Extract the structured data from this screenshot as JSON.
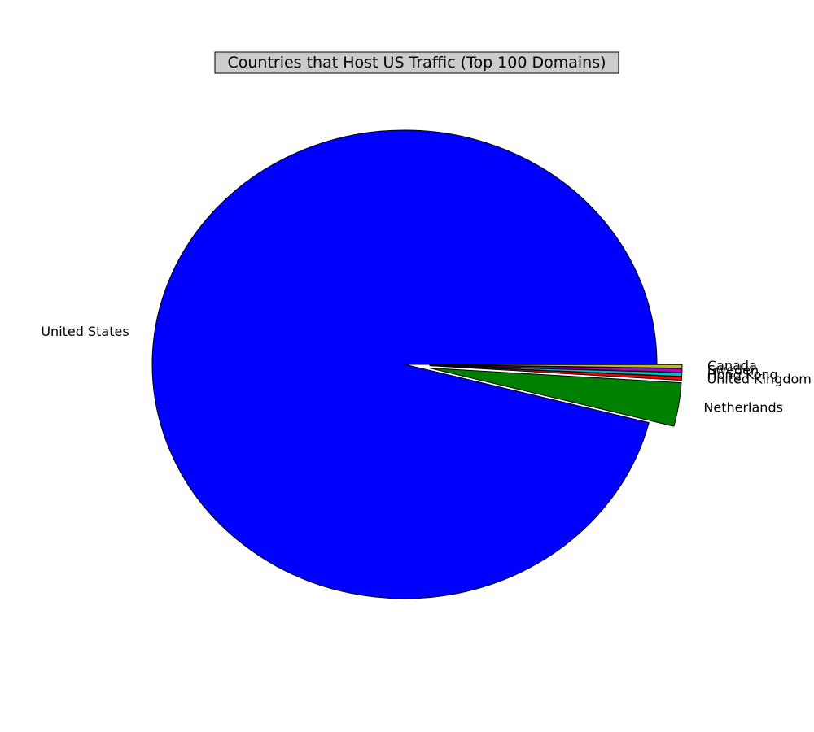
{
  "chart_data": {
    "type": "pie",
    "title": "Countries that Host US Traffic (Top 100 Domains)",
    "slices": [
      {
        "label": "United States",
        "value": 96.0,
        "color": "#0000ff",
        "explode": false
      },
      {
        "label": "Netherlands",
        "value": 3.0,
        "color": "#008000",
        "explode": true
      },
      {
        "label": "United Kingdom",
        "value": 0.25,
        "color": "#ff0000",
        "explode": true
      },
      {
        "label": "Hong Kong",
        "value": 0.25,
        "color": "#00bfbf",
        "explode": true
      },
      {
        "label": "Sweden",
        "value": 0.25,
        "color": "#bf00bf",
        "explode": true
      },
      {
        "label": "Canada",
        "value": 0.25,
        "color": "#bfbf00",
        "explode": true
      }
    ],
    "start_angle": "0 degrees (3 o'clock), counterclockwise",
    "legend": "none",
    "title_box_color": "#cccccc"
  }
}
